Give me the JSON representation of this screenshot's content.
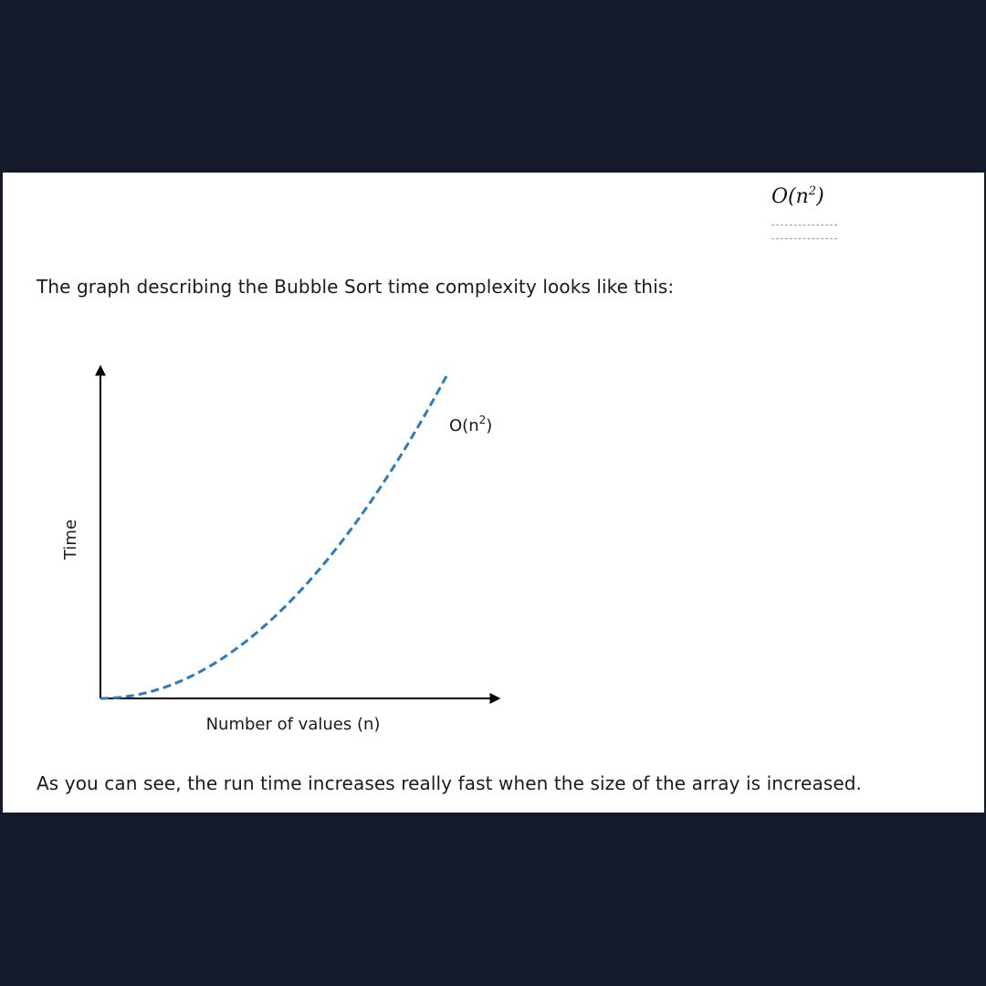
{
  "header": {
    "formula_main": "O(n",
    "formula_sup": "2",
    "formula_close": ")"
  },
  "intro_text": "The graph describing the Bubble Sort time complexity looks like this:",
  "outro_text": "As you can see, the run time increases really fast when the size of the array is increased.",
  "colors": {
    "curve": "#2b7bbf",
    "axis": "#000000",
    "page_background": "#ffffff",
    "frame_background": "#131a2a"
  },
  "chart_data": {
    "type": "line",
    "title": "",
    "xlabel": "Number of values (n)",
    "ylabel": "Time",
    "grid": false,
    "axis_ticks": false,
    "series": [
      {
        "name": "O(n²)",
        "label_main": "O(n",
        "label_sup": "2",
        "label_close": ")",
        "style": "dashed",
        "function": "n^2",
        "x": [
          0,
          0.1,
          0.2,
          0.3,
          0.4,
          0.5,
          0.6,
          0.7,
          0.8,
          0.9,
          1.0
        ],
        "y": [
          0,
          0.01,
          0.04,
          0.09,
          0.16,
          0.25,
          0.36,
          0.49,
          0.64,
          0.81,
          1.0
        ]
      }
    ]
  }
}
